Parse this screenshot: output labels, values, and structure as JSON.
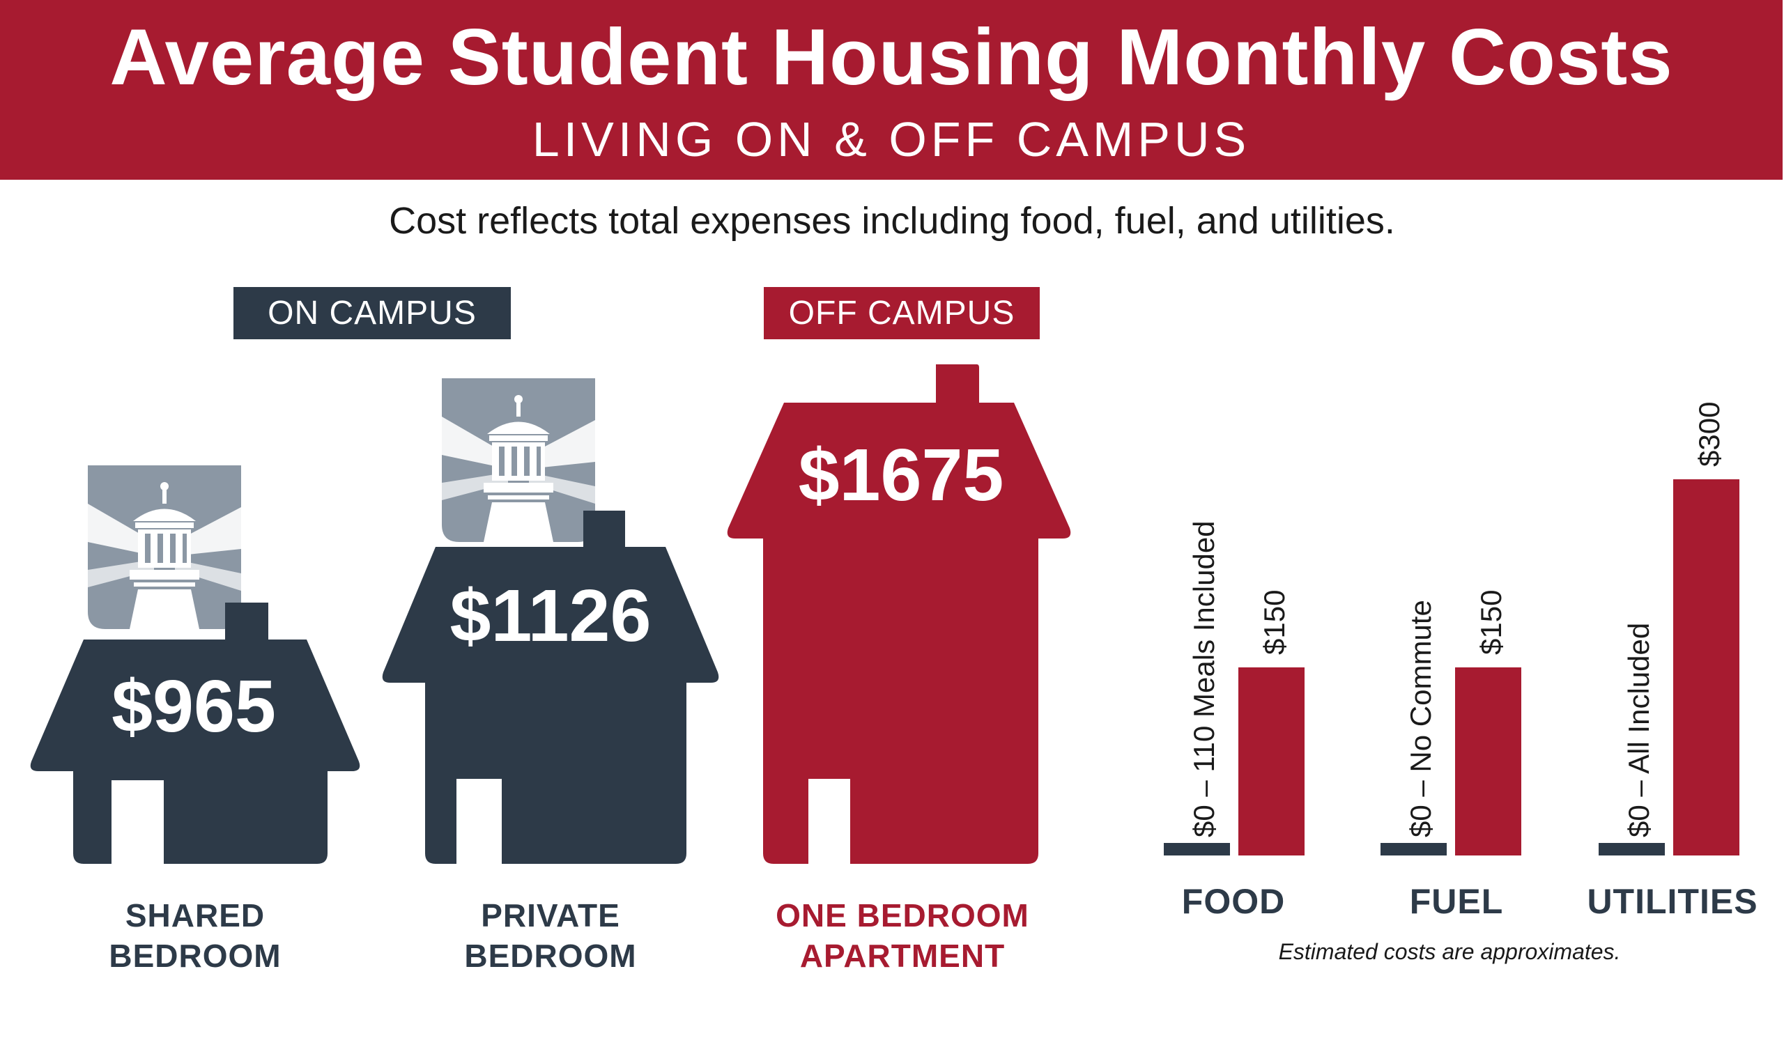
{
  "header": {
    "title": "Average Student Housing Monthly Costs",
    "subtitle": "LIVING ON & OFF CAMPUS"
  },
  "note": "Cost reflects total expenses including food, fuel, and utilities.",
  "badges": {
    "on_campus": "ON CAMPUS",
    "off_campus": "OFF CAMPUS"
  },
  "colors": {
    "brand_red": "#a71b30",
    "navy": "#2d3a48",
    "gray": "#8b97a4"
  },
  "icons": {
    "lighthouse": "lighthouse-icon",
    "house": "house-icon"
  },
  "houses": [
    {
      "price": "$965",
      "label_lines": [
        "SHARED",
        "BEDROOM"
      ],
      "group": "ON CAMPUS"
    },
    {
      "price": "$1126",
      "label_lines": [
        "PRIVATE",
        "BEDROOM"
      ],
      "group": "ON CAMPUS"
    },
    {
      "price": "$1675",
      "label_lines": [
        "ONE BEDROOM",
        "APARTMENT"
      ],
      "group": "OFF CAMPUS"
    }
  ],
  "chart_data": {
    "type": "bar",
    "categories": [
      "FOOD",
      "FUEL",
      "UTILITIES"
    ],
    "bars": [
      {
        "category": "FOOD",
        "on_value": 0,
        "on_label": "$0 – 110 Meals Included",
        "off_value": 150,
        "off_label": "$150"
      },
      {
        "category": "FUEL",
        "on_value": 0,
        "on_label": "$0 – No Commute",
        "off_value": 150,
        "off_label": "$150"
      },
      {
        "category": "UTILITIES",
        "on_value": 0,
        "on_label": "$0 – All Included",
        "off_value": 300,
        "off_label": "$300"
      }
    ],
    "ylim": [
      0,
      300
    ],
    "grid": false,
    "footnote": "Estimated costs are approximates."
  }
}
